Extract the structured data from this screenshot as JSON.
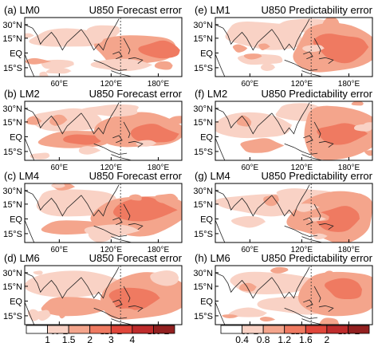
{
  "left_panels": [
    {
      "label": "(a) LM0",
      "title": "U850 Forecast error"
    },
    {
      "label": "(b) LM2",
      "title": "U850 Forecast error"
    },
    {
      "label": "(c) LM4",
      "title": "U850 Forecast error"
    },
    {
      "label": "(d) LM6",
      "title": "U850 Forecast error"
    }
  ],
  "right_panels": [
    {
      "label": "(e) LM1",
      "title": "U850 Predictability error"
    },
    {
      "label": "(f) LM2",
      "title": "U850 Predictability error"
    },
    {
      "label": "(g) LM4",
      "title": "U850 Predictability error"
    },
    {
      "label": "(h) LM6",
      "title": "U850 Predictability error"
    }
  ],
  "lat_ticks": [
    "30°N",
    "15°N",
    "EQ",
    "15°S"
  ],
  "lon_ticks": [
    "60°E",
    "120°E",
    "180°E"
  ],
  "colorbar_left": {
    "ticks": [
      "1",
      "1.5",
      "2",
      "3",
      "4"
    ],
    "colors": [
      "#ffffff",
      "#f9d2c5",
      "#f4a58c",
      "#ef7a61",
      "#e0463a",
      "#bf2c2c",
      "#932020"
    ]
  },
  "colorbar_right": {
    "ticks": [
      "0.4",
      "0.8",
      "1.2",
      "1.6",
      "2"
    ],
    "colors": [
      "#ffffff",
      "#f9d2c5",
      "#f4a58c",
      "#ef7a61",
      "#e0463a",
      "#bf2c2c",
      "#932020"
    ]
  },
  "chart_data": [
    {
      "type": "heatmap",
      "panel": "(a) LM0",
      "title": "U850 Forecast error",
      "field": "U850 forecast error",
      "x_range": [
        30,
        200
      ],
      "y_range": [
        -15,
        38
      ],
      "levels": [
        1,
        1.5,
        2,
        3,
        4
      ]
    },
    {
      "type": "heatmap",
      "panel": "(b) LM2",
      "title": "U850 Forecast error",
      "field": "U850 forecast error",
      "x_range": [
        30,
        200
      ],
      "y_range": [
        -15,
        38
      ],
      "levels": [
        1,
        1.5,
        2,
        3,
        4
      ]
    },
    {
      "type": "heatmap",
      "panel": "(c) LM4",
      "title": "U850 Forecast error",
      "field": "U850 forecast error",
      "x_range": [
        30,
        200
      ],
      "y_range": [
        -15,
        38
      ],
      "levels": [
        1,
        1.5,
        2,
        3,
        4
      ]
    },
    {
      "type": "heatmap",
      "panel": "(d) LM6",
      "title": "U850 Forecast error",
      "field": "U850 forecast error",
      "x_range": [
        30,
        200
      ],
      "y_range": [
        -15,
        38
      ],
      "levels": [
        1,
        1.5,
        2,
        3,
        4
      ]
    },
    {
      "type": "heatmap",
      "panel": "(e) LM1",
      "title": "U850 Predictability error",
      "field": "U850 predictability error",
      "x_range": [
        30,
        200
      ],
      "y_range": [
        -15,
        38
      ],
      "levels": [
        0.4,
        0.8,
        1.2,
        1.6,
        2
      ]
    },
    {
      "type": "heatmap",
      "panel": "(f) LM2",
      "title": "U850 Predictability error",
      "field": "U850 predictability error",
      "x_range": [
        30,
        200
      ],
      "y_range": [
        -15,
        38
      ],
      "levels": [
        0.4,
        0.8,
        1.2,
        1.6,
        2
      ]
    },
    {
      "type": "heatmap",
      "panel": "(g) LM4",
      "title": "U850 Predictability error",
      "field": "U850 predictability error",
      "x_range": [
        30,
        200
      ],
      "y_range": [
        -15,
        38
      ],
      "levels": [
        0.4,
        0.8,
        1.2,
        1.6,
        2
      ]
    },
    {
      "type": "heatmap",
      "panel": "(h) LM6",
      "title": "U850 Predictability error",
      "field": "U850 predictability error",
      "x_range": [
        30,
        200
      ],
      "y_range": [
        -15,
        38
      ],
      "levels": [
        0.4,
        0.8,
        1.2,
        1.6,
        2
      ]
    }
  ]
}
